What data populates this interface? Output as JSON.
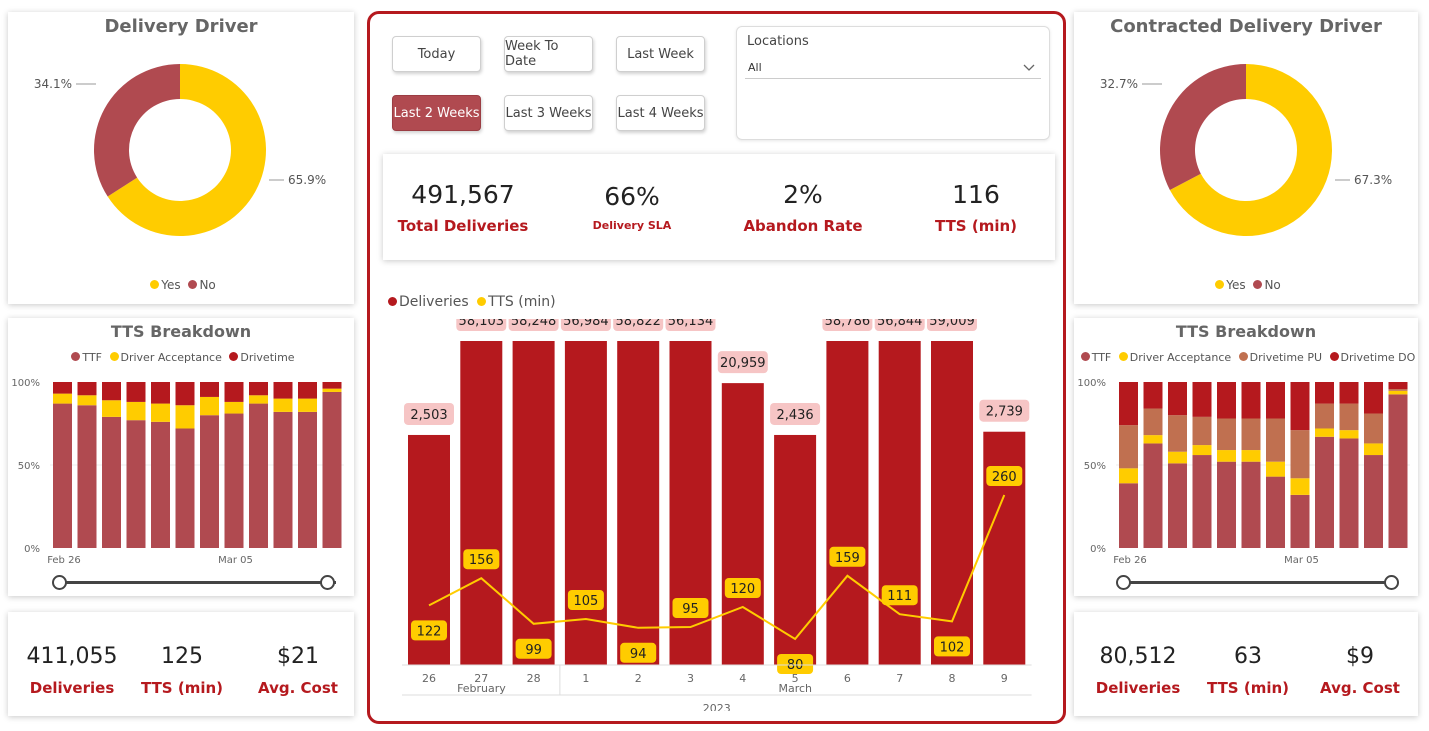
{
  "colors": {
    "red": "#b5191e",
    "rose": "#b04a50",
    "yellow": "#ffcc00",
    "brown": "#c07050",
    "label_bg": "#f6c5c5"
  },
  "left_panel": {
    "donut": {
      "title": "Delivery Driver",
      "yes_pct": 65.9,
      "no_pct": 34.1,
      "yes_label": "65.9%",
      "no_label": "34.1%",
      "legend": [
        "Yes",
        "No"
      ]
    },
    "tts": {
      "title": "TTS Breakdown",
      "legend": [
        "TTF",
        "Driver Acceptance",
        "Drivetime"
      ],
      "y_ticks": [
        "100%",
        "50%",
        "0%"
      ],
      "x_labels": [
        "Feb 26",
        "Mar 05"
      ],
      "bars": [
        [
          87,
          6,
          7
        ],
        [
          86,
          6,
          8
        ],
        [
          79,
          10,
          11
        ],
        [
          77,
          11,
          12
        ],
        [
          76,
          11,
          13
        ],
        [
          72,
          14,
          14
        ],
        [
          80,
          11,
          9
        ],
        [
          81,
          7,
          12
        ],
        [
          87,
          5,
          8
        ],
        [
          82,
          8,
          10
        ],
        [
          82,
          8,
          10
        ],
        [
          94,
          2,
          4
        ]
      ]
    },
    "kpis": [
      {
        "value": "411,055",
        "label": "Deliveries"
      },
      {
        "value": "125",
        "label": "TTS (min)"
      },
      {
        "value": "$21",
        "label": "Avg. Cost"
      }
    ]
  },
  "right_panel": {
    "donut": {
      "title": "Contracted Delivery Driver",
      "yes_pct": 67.3,
      "no_pct": 32.7,
      "yes_label": "67.3%",
      "no_label": "32.7%",
      "legend": [
        "Yes",
        "No"
      ]
    },
    "tts": {
      "title": "TTS Breakdown",
      "legend": [
        "TTF",
        "Driver Acceptance",
        "Drivetime PU",
        "Drivetime DO"
      ],
      "y_ticks": [
        "100%",
        "50%",
        "0%"
      ],
      "x_labels": [
        "Feb 26",
        "Mar 05"
      ],
      "bars": [
        [
          39,
          9,
          26,
          26
        ],
        [
          63,
          5,
          16,
          16
        ],
        [
          51,
          7,
          22,
          20
        ],
        [
          56,
          6,
          17,
          21
        ],
        [
          52,
          7,
          19,
          22
        ],
        [
          52,
          7,
          19,
          22
        ],
        [
          43,
          9,
          26,
          22
        ],
        [
          32,
          10,
          29,
          29
        ],
        [
          67,
          5,
          15,
          13
        ],
        [
          66,
          5,
          16,
          13
        ],
        [
          56,
          7,
          18,
          19
        ],
        [
          87,
          2,
          1,
          4
        ]
      ]
    },
    "kpis": [
      {
        "value": "80,512",
        "label": "Deliveries"
      },
      {
        "value": "63",
        "label": "TTS (min)"
      },
      {
        "value": "$9",
        "label": "Avg. Cost"
      }
    ]
  },
  "filters": {
    "buttons": [
      "Today",
      "Week To Date",
      "Last Week",
      "Last 2 Weeks",
      "Last 3 Weeks",
      "Last 4 Weeks"
    ],
    "active": "Last 2 Weeks",
    "locations": {
      "label": "Locations",
      "value": "All"
    }
  },
  "kpis": [
    {
      "value": "491,567",
      "label": "Total Deliveries"
    },
    {
      "value": "66%",
      "label": "Delivery SLA"
    },
    {
      "value": "2%",
      "label": "Abandon Rate"
    },
    {
      "value": "116",
      "label": "TTS (min)"
    }
  ],
  "chart_data": {
    "type": "bar",
    "legend": [
      "Deliveries",
      "TTS (min)"
    ],
    "categories": [
      "26",
      "27",
      "28",
      "1",
      "2",
      "3",
      "4",
      "5",
      "6",
      "7",
      "8",
      "9"
    ],
    "month_labels": [
      "February",
      "March"
    ],
    "year_label": "2023",
    "series": [
      {
        "name": "Deliveries",
        "type": "bar",
        "values": [
          2503,
          58103,
          58248,
          56984,
          58822,
          56134,
          20959,
          2436,
          58786,
          56844,
          59009,
          2739
        ],
        "labels": [
          "2,503",
          "58,103",
          "58,248",
          "56,984",
          "58,822",
          "56,134",
          "20,959",
          "2,436",
          "58,786",
          "56,844",
          "59,009",
          "2,739"
        ],
        "bar_fill_pct": [
          71,
          100,
          100,
          100,
          100,
          100,
          87,
          71,
          100,
          100,
          100,
          72
        ]
      },
      {
        "name": "TTS (min)",
        "type": "line",
        "values": [
          122,
          156,
          99,
          105,
          94,
          95,
          120,
          80,
          159,
          111,
          102,
          260
        ]
      }
    ]
  }
}
